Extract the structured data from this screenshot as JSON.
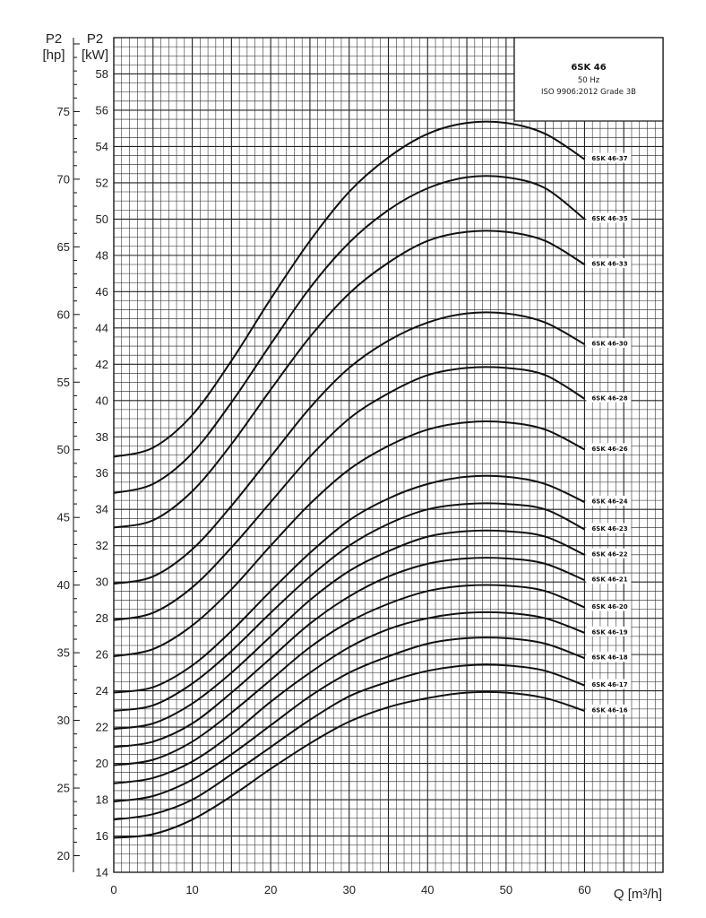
{
  "info_box": {
    "title": "6SK 46",
    "frequency": "50 Hz",
    "standard": "ISO 9906:2012 Grade 3B"
  },
  "axes": {
    "left_hp_label": [
      "P2",
      "[hp]"
    ],
    "left_kw_label": [
      "P2",
      "[kW]"
    ],
    "x_label": "Q [m³/h]"
  },
  "chart_data": {
    "type": "line",
    "x_ticks": [
      0,
      10,
      20,
      30,
      40,
      50,
      60
    ],
    "x_range": [
      0,
      70
    ],
    "kw_ticks": [
      14,
      16,
      18,
      20,
      22,
      24,
      26,
      28,
      30,
      32,
      34,
      36,
      38,
      40,
      42,
      44,
      46,
      48,
      50,
      52,
      54,
      56,
      58
    ],
    "kw_range": [
      14,
      60
    ],
    "hp_ticks": [
      20,
      25,
      30,
      35,
      40,
      45,
      50,
      55,
      60,
      65,
      70,
      75
    ],
    "grid": true,
    "series": [
      {
        "name": "6SK 46-37",
        "points": [
          [
            0,
            36.9
          ],
          [
            5,
            37.4
          ],
          [
            10,
            39.2
          ],
          [
            15,
            42.2
          ],
          [
            20,
            45.6
          ],
          [
            25,
            48.8
          ],
          [
            30,
            51.5
          ],
          [
            35,
            53.4
          ],
          [
            40,
            54.7
          ],
          [
            45,
            55.3
          ],
          [
            50,
            55.3
          ],
          [
            55,
            54.7
          ],
          [
            60,
            53.3
          ]
        ]
      },
      {
        "name": "6SK 46-35",
        "points": [
          [
            0,
            34.9
          ],
          [
            5,
            35.4
          ],
          [
            10,
            37.1
          ],
          [
            15,
            39.9
          ],
          [
            20,
            43.1
          ],
          [
            25,
            46.2
          ],
          [
            30,
            48.7
          ],
          [
            35,
            50.5
          ],
          [
            40,
            51.7
          ],
          [
            45,
            52.3
          ],
          [
            50,
            52.3
          ],
          [
            55,
            51.7
          ],
          [
            60,
            50.0
          ]
        ]
      },
      {
        "name": "6SK 46-33",
        "points": [
          [
            0,
            33.0
          ],
          [
            5,
            33.4
          ],
          [
            10,
            35.0
          ],
          [
            15,
            37.6
          ],
          [
            20,
            40.6
          ],
          [
            25,
            43.5
          ],
          [
            30,
            45.9
          ],
          [
            35,
            47.6
          ],
          [
            40,
            48.8
          ],
          [
            45,
            49.3
          ],
          [
            50,
            49.3
          ],
          [
            55,
            48.8
          ],
          [
            60,
            47.5
          ]
        ]
      },
      {
        "name": "6SK 46-30",
        "points": [
          [
            0,
            29.9
          ],
          [
            5,
            30.3
          ],
          [
            10,
            31.8
          ],
          [
            15,
            34.2
          ],
          [
            20,
            36.9
          ],
          [
            25,
            39.6
          ],
          [
            30,
            41.8
          ],
          [
            35,
            43.3
          ],
          [
            40,
            44.3
          ],
          [
            45,
            44.8
          ],
          [
            50,
            44.8
          ],
          [
            55,
            44.3
          ],
          [
            60,
            43.1
          ]
        ]
      },
      {
        "name": "6SK 46-28",
        "points": [
          [
            0,
            27.9
          ],
          [
            5,
            28.3
          ],
          [
            10,
            29.7
          ],
          [
            15,
            31.9
          ],
          [
            20,
            34.4
          ],
          [
            25,
            36.9
          ],
          [
            30,
            39.0
          ],
          [
            35,
            40.4
          ],
          [
            40,
            41.4
          ],
          [
            45,
            41.8
          ],
          [
            50,
            41.8
          ],
          [
            55,
            41.4
          ],
          [
            60,
            40.1
          ]
        ]
      },
      {
        "name": "6SK 46-26",
        "points": [
          [
            0,
            25.9
          ],
          [
            5,
            26.3
          ],
          [
            10,
            27.6
          ],
          [
            15,
            29.6
          ],
          [
            20,
            32.0
          ],
          [
            25,
            34.3
          ],
          [
            30,
            36.2
          ],
          [
            35,
            37.5
          ],
          [
            40,
            38.4
          ],
          [
            45,
            38.8
          ],
          [
            50,
            38.8
          ],
          [
            55,
            38.4
          ],
          [
            60,
            37.3
          ]
        ]
      },
      {
        "name": "6SK 46-24",
        "points": [
          [
            0,
            23.9
          ],
          [
            5,
            24.2
          ],
          [
            10,
            25.4
          ],
          [
            15,
            27.3
          ],
          [
            20,
            29.5
          ],
          [
            25,
            31.6
          ],
          [
            30,
            33.4
          ],
          [
            35,
            34.6
          ],
          [
            40,
            35.4
          ],
          [
            45,
            35.8
          ],
          [
            50,
            35.8
          ],
          [
            55,
            35.4
          ],
          [
            60,
            34.4
          ]
        ]
      },
      {
        "name": "6SK 46-23",
        "points": [
          [
            0,
            22.9
          ],
          [
            5,
            23.2
          ],
          [
            10,
            24.4
          ],
          [
            15,
            26.2
          ],
          [
            20,
            28.3
          ],
          [
            25,
            30.3
          ],
          [
            30,
            32.0
          ],
          [
            35,
            33.2
          ],
          [
            40,
            34.0
          ],
          [
            45,
            34.3
          ],
          [
            50,
            34.3
          ],
          [
            55,
            34.0
          ],
          [
            60,
            32.9
          ]
        ]
      },
      {
        "name": "6SK 46-22",
        "points": [
          [
            0,
            21.9
          ],
          [
            5,
            22.2
          ],
          [
            10,
            23.3
          ],
          [
            15,
            25.0
          ],
          [
            20,
            27.0
          ],
          [
            25,
            29.0
          ],
          [
            30,
            30.6
          ],
          [
            35,
            31.7
          ],
          [
            40,
            32.5
          ],
          [
            45,
            32.8
          ],
          [
            50,
            32.8
          ],
          [
            55,
            32.5
          ],
          [
            60,
            31.5
          ]
        ]
      },
      {
        "name": "6SK 46-21",
        "points": [
          [
            0,
            20.9
          ],
          [
            5,
            21.2
          ],
          [
            10,
            22.2
          ],
          [
            15,
            23.9
          ],
          [
            20,
            25.8
          ],
          [
            25,
            27.7
          ],
          [
            30,
            29.2
          ],
          [
            35,
            30.3
          ],
          [
            40,
            31.0
          ],
          [
            45,
            31.3
          ],
          [
            50,
            31.3
          ],
          [
            55,
            31.0
          ],
          [
            60,
            30.1
          ]
        ]
      },
      {
        "name": "6SK 46-20",
        "points": [
          [
            0,
            19.9
          ],
          [
            5,
            20.2
          ],
          [
            10,
            21.2
          ],
          [
            15,
            22.8
          ],
          [
            20,
            24.6
          ],
          [
            25,
            26.4
          ],
          [
            30,
            27.8
          ],
          [
            35,
            28.8
          ],
          [
            40,
            29.5
          ],
          [
            45,
            29.8
          ],
          [
            50,
            29.8
          ],
          [
            55,
            29.5
          ],
          [
            60,
            28.6
          ]
        ]
      },
      {
        "name": "6SK 46-19",
        "points": [
          [
            0,
            18.9
          ],
          [
            5,
            19.2
          ],
          [
            10,
            20.1
          ],
          [
            15,
            21.6
          ],
          [
            20,
            23.4
          ],
          [
            25,
            25.0
          ],
          [
            30,
            26.4
          ],
          [
            35,
            27.4
          ],
          [
            40,
            28.0
          ],
          [
            45,
            28.3
          ],
          [
            50,
            28.3
          ],
          [
            55,
            28.0
          ],
          [
            60,
            27.2
          ]
        ]
      },
      {
        "name": "6SK 46-18",
        "points": [
          [
            0,
            17.9
          ],
          [
            5,
            18.2
          ],
          [
            10,
            19.1
          ],
          [
            15,
            20.5
          ],
          [
            20,
            22.1
          ],
          [
            25,
            23.7
          ],
          [
            30,
            25.0
          ],
          [
            35,
            25.9
          ],
          [
            40,
            26.6
          ],
          [
            45,
            26.9
          ],
          [
            50,
            26.9
          ],
          [
            55,
            26.6
          ],
          [
            60,
            25.8
          ]
        ]
      },
      {
        "name": "6SK 46-17",
        "points": [
          [
            0,
            16.9
          ],
          [
            5,
            17.2
          ],
          [
            10,
            18.0
          ],
          [
            15,
            19.4
          ],
          [
            20,
            20.9
          ],
          [
            25,
            22.4
          ],
          [
            30,
            23.7
          ],
          [
            35,
            24.5
          ],
          [
            40,
            25.1
          ],
          [
            45,
            25.4
          ],
          [
            50,
            25.4
          ],
          [
            55,
            25.1
          ],
          [
            60,
            24.3
          ]
        ]
      },
      {
        "name": "6SK 46-16",
        "points": [
          [
            0,
            15.9
          ],
          [
            5,
            16.1
          ],
          [
            10,
            16.9
          ],
          [
            15,
            18.2
          ],
          [
            20,
            19.7
          ],
          [
            25,
            21.1
          ],
          [
            30,
            22.3
          ],
          [
            35,
            23.1
          ],
          [
            40,
            23.6
          ],
          [
            45,
            23.9
          ],
          [
            50,
            23.9
          ],
          [
            55,
            23.6
          ],
          [
            60,
            22.9
          ]
        ]
      }
    ]
  }
}
